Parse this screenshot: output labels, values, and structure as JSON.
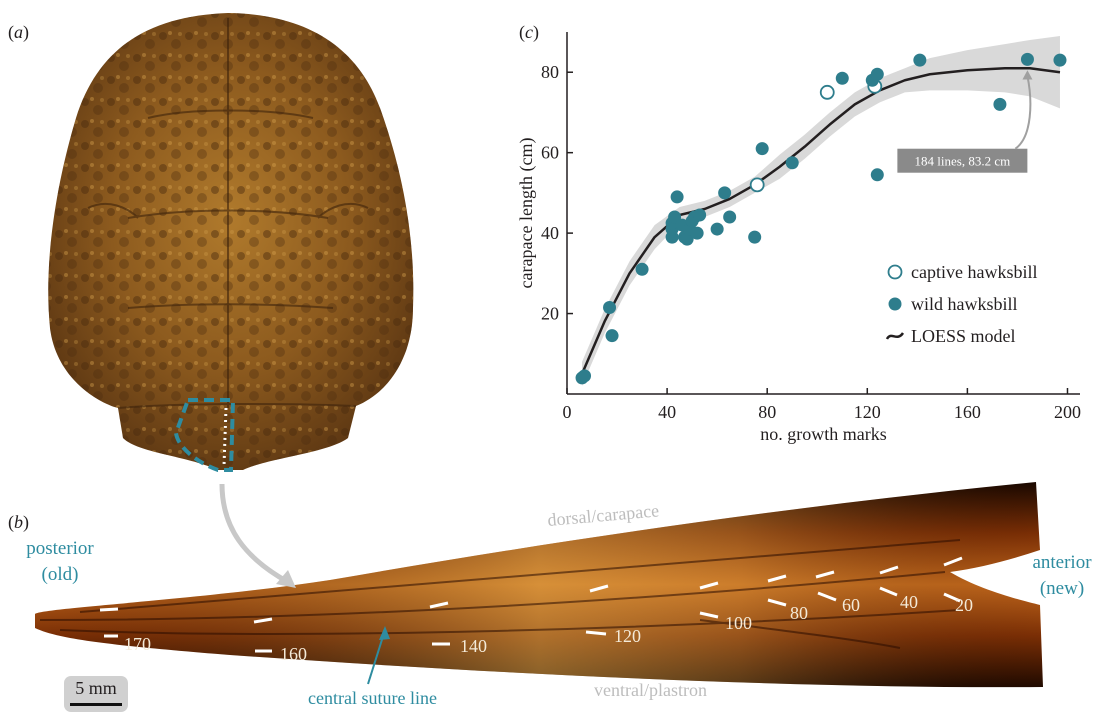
{
  "panels": {
    "a_label": "a",
    "b_label": "b",
    "c_label": "c"
  },
  "strip": {
    "posterior": "posterior",
    "posterior_sub": "(old)",
    "anterior": "anterior",
    "anterior_sub": "(new)",
    "dorsal": "dorsal/carapace",
    "ventral": "ventral/plastron",
    "suture": "central suture line",
    "scale": "5 mm",
    "marks": [
      "20",
      "40",
      "60",
      "80",
      "100",
      "120",
      "140",
      "160",
      "170"
    ]
  },
  "colors": {
    "teal": "#2e7d8c",
    "loess": "#231f20",
    "band": "#d9d9d9",
    "annotation_bg": "#8a8a8a"
  },
  "chart_data": {
    "type": "scatter",
    "xlabel": "no. growth marks",
    "ylabel": "carapace length (cm)",
    "xlim": [
      0,
      205
    ],
    "ylim": [
      0,
      90
    ],
    "xticks": [
      0,
      40,
      80,
      120,
      160,
      200
    ],
    "yticks": [
      20,
      40,
      60,
      80
    ],
    "legend_position": "bottom-right",
    "annotation": "184 lines, 83.2 cm",
    "annotation_point": [
      184,
      83.2
    ],
    "series": [
      {
        "name": "captive hawksbill",
        "marker": "open-circle",
        "points": [
          [
            76,
            52
          ],
          [
            104,
            75
          ],
          [
            123,
            76.5
          ]
        ]
      },
      {
        "name": "wild hawksbill",
        "marker": "filled-circle",
        "points": [
          [
            6,
            4
          ],
          [
            7,
            4.5
          ],
          [
            17,
            21.5
          ],
          [
            18,
            14.5
          ],
          [
            30,
            31
          ],
          [
            42,
            39
          ],
          [
            42,
            41
          ],
          [
            42,
            42.5
          ],
          [
            43,
            44
          ],
          [
            44,
            49
          ],
          [
            46,
            42
          ],
          [
            47,
            39
          ],
          [
            48,
            38.5
          ],
          [
            49,
            41
          ],
          [
            50,
            43
          ],
          [
            51,
            44
          ],
          [
            52,
            40
          ],
          [
            53,
            44.5
          ],
          [
            60,
            41
          ],
          [
            63,
            50
          ],
          [
            65,
            44
          ],
          [
            75,
            39
          ],
          [
            78,
            61
          ],
          [
            90,
            57.5
          ],
          [
            110,
            78.5
          ],
          [
            122,
            78
          ],
          [
            124,
            79.5
          ],
          [
            124,
            54.5
          ],
          [
            141,
            83
          ],
          [
            173,
            72
          ],
          [
            184,
            83.2
          ],
          [
            197,
            83
          ]
        ]
      },
      {
        "name": "LOESS model",
        "marker": "line",
        "x": [
          6,
          15,
          25,
          35,
          45,
          55,
          65,
          75,
          85,
          95,
          105,
          115,
          125,
          135,
          145,
          160,
          175,
          185,
          197
        ],
        "y": [
          5,
          18,
          30,
          39,
          44.5,
          46,
          48.5,
          52,
          56.5,
          61.5,
          67,
          72,
          75.5,
          78,
          79.5,
          80.5,
          81,
          81,
          80
        ],
        "band_half_width": [
          3,
          3,
          3,
          3,
          2,
          2,
          2,
          2,
          3,
          3,
          3,
          3,
          3,
          3,
          4,
          5,
          6,
          7,
          9
        ]
      }
    ]
  }
}
